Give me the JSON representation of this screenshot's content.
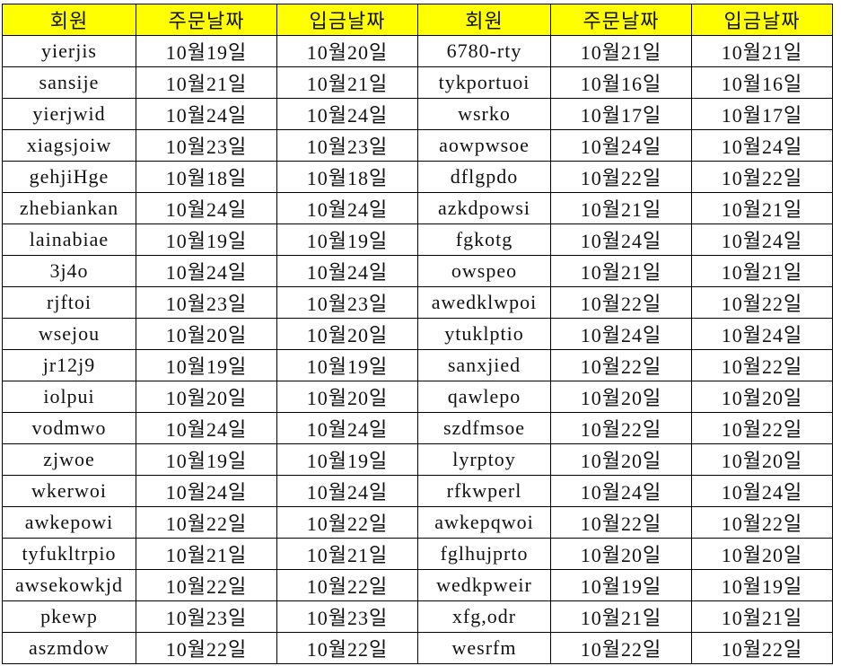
{
  "header_fill": "#ffff00",
  "headers": [
    "회원",
    "주문날짜",
    "입금날짜",
    "회원",
    "주문날짜",
    "입금날짜"
  ],
  "rows": [
    [
      "yierjis",
      "10월19일",
      "10월20일",
      "6780-rty",
      "10월21일",
      "10월21일"
    ],
    [
      "sansije",
      "10월21일",
      "10월21일",
      "tykportuoi",
      "10월16일",
      "10월16일"
    ],
    [
      "yierjwid",
      "10월24일",
      "10월24일",
      "wsrko",
      "10월17일",
      "10월17일"
    ],
    [
      "xiagsjoiw",
      "10월23일",
      "10월23일",
      "aowpwsoe",
      "10월24일",
      "10월24일"
    ],
    [
      "gehjiHge",
      "10월18일",
      "10월18일",
      "dflgpdo",
      "10월22일",
      "10월22일"
    ],
    [
      "zhebiankan",
      "10월24일",
      "10월24일",
      "azkdpowsi",
      "10월21일",
      "10월21일"
    ],
    [
      "lainabiae",
      "10월19일",
      "10월19일",
      "fgkotg",
      "10월24일",
      "10월24일"
    ],
    [
      "3j4o",
      "10월24일",
      "10월24일",
      "owspeo",
      "10월21일",
      "10월21일"
    ],
    [
      "rjftoi",
      "10월23일",
      "10월23일",
      "awedklwpoi",
      "10월22일",
      "10월22일"
    ],
    [
      "wsejou",
      "10월20일",
      "10월20일",
      "ytuklptio",
      "10월24일",
      "10월24일"
    ],
    [
      "jr12j9",
      "10월19일",
      "10월19일",
      "sanxjied",
      "10월22일",
      "10월22일"
    ],
    [
      "iolpui",
      "10월20일",
      "10월20일",
      "qawlepo",
      "10월20일",
      "10월20일"
    ],
    [
      "vodmwo",
      "10월24일",
      "10월24일",
      "szdfmsoe",
      "10월22일",
      "10월22일"
    ],
    [
      "zjwoe",
      "10월19일",
      "10월19일",
      "lyrptoy",
      "10월20일",
      "10월20일"
    ],
    [
      "wkerwoi",
      "10월24일",
      "10월24일",
      "rfkwperl",
      "10월24일",
      "10월24일"
    ],
    [
      "awkepowi",
      "10월22일",
      "10월22일",
      "awkepqwoi",
      "10월22일",
      "10월22일"
    ],
    [
      "tyfukltrpio",
      "10월21일",
      "10월21일",
      "fglhujprto",
      "10월20일",
      "10월20일"
    ],
    [
      "awsekowkjd",
      "10월22일",
      "10월22일",
      "wedkpweir",
      "10월19일",
      "10월19일"
    ],
    [
      "pkewp",
      "10월23일",
      "10월23일",
      "xfg,odr",
      "10월21일",
      "10월21일"
    ],
    [
      "aszmdow",
      "10월22일",
      "10월22일",
      "wesrfm",
      "10월22일",
      "10월22일"
    ]
  ]
}
